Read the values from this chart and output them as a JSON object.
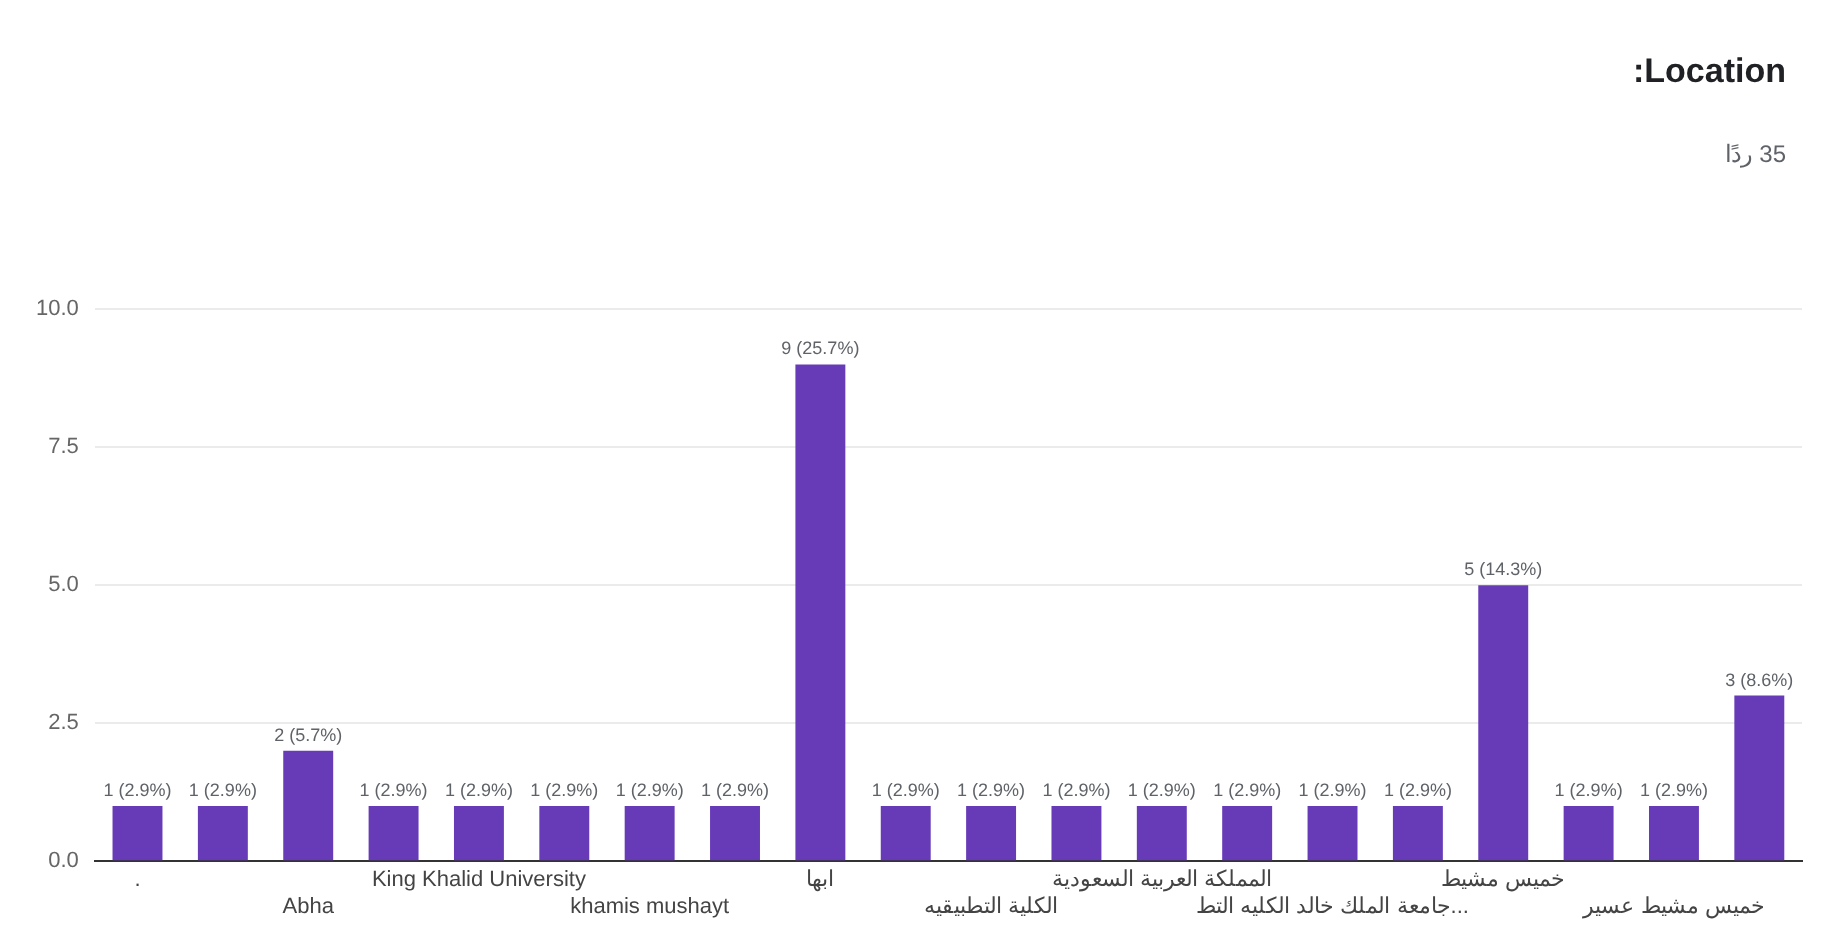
{
  "chart_data": {
    "type": "bar",
    "title": "Location:",
    "subtitle": "35 ردًا",
    "categories": [
      ".",
      null,
      "Abha",
      null,
      "King Khalid University",
      null,
      "khamis mushayt",
      null,
      "ابها",
      null,
      "الكلية التطبيقيه",
      null,
      "المملكة العربية السعودية",
      null,
      "جامعة الملك خالد الكليه التط...",
      null,
      "خميس مشيط",
      null,
      "خميس مشيط عسير",
      null
    ],
    "values": [
      1,
      1,
      2,
      1,
      1,
      1,
      1,
      1,
      9,
      1,
      1,
      1,
      1,
      1,
      1,
      1,
      5,
      1,
      1,
      3
    ],
    "value_labels": [
      "1 (2.9%)",
      "1 (2.9%)",
      "2 (5.7%)",
      "1 (2.9%)",
      "1 (2.9%)",
      "1 (2.9%)",
      "1 (2.9%)",
      "1 (2.9%)",
      "9 (25.7%)",
      "1 (2.9%)",
      "1 (2.9%)",
      "1 (2.9%)",
      "1 (2.9%)",
      "1 (2.9%)",
      "1 (2.9%)",
      "1 (2.9%)",
      "5 (14.3%)",
      "1 (2.9%)",
      "1 (2.9%)",
      "3 (8.6%)"
    ],
    "color": "#673ab7",
    "ylim": [
      0,
      10
    ],
    "yticks": [
      {
        "value": 0,
        "label": "0.0"
      },
      {
        "value": 2.5,
        "label": "2.5"
      },
      {
        "value": 5,
        "label": "5.0"
      },
      {
        "value": 7.5,
        "label": "7.5"
      },
      {
        "value": 10,
        "label": "10.0"
      }
    ],
    "grid": "y",
    "legend": false
  }
}
